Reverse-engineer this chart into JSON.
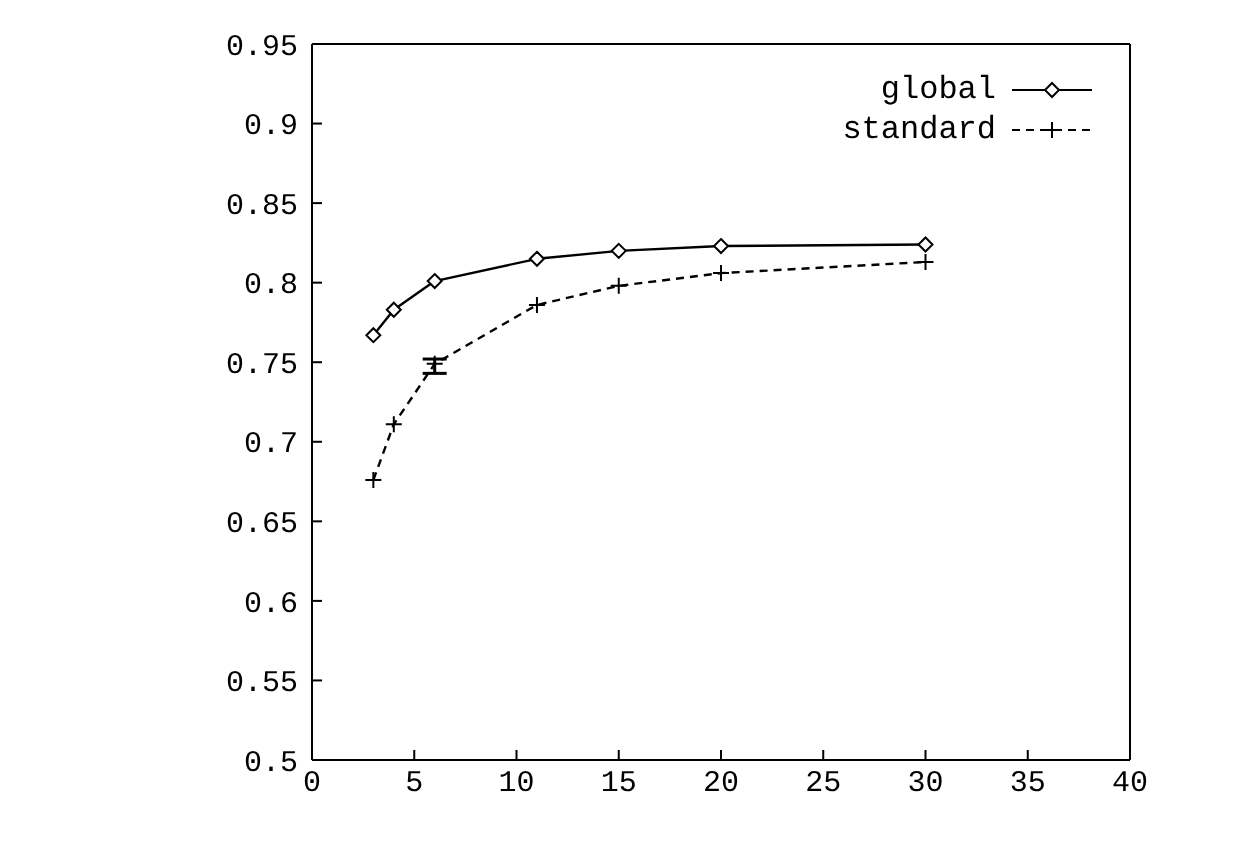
{
  "chart_data": {
    "type": "line",
    "x": [
      3,
      4,
      6,
      11,
      15,
      20,
      30
    ],
    "series": [
      {
        "name": "global",
        "color": "#000000",
        "marker": "diamond",
        "line_style": "solid",
        "values": [
          0.767,
          0.783,
          0.801,
          0.815,
          0.82,
          0.823,
          0.824
        ]
      },
      {
        "name": "standard",
        "color": "#000000",
        "marker": "cross",
        "line_style": "dashed",
        "values": [
          0.676,
          0.711,
          0.749,
          0.786,
          0.798,
          0.806,
          0.813
        ],
        "errors": [
          null,
          null,
          [
            0.743,
            0.752
          ],
          null,
          null,
          null,
          null
        ]
      }
    ],
    "xlim": [
      0,
      40
    ],
    "xticks": [
      0,
      5,
      10,
      15,
      20,
      25,
      30,
      35,
      40
    ],
    "ylim": [
      0.5,
      0.95
    ],
    "yticks": [
      0.5,
      0.55,
      0.6,
      0.65,
      0.7,
      0.75,
      0.8,
      0.85,
      0.9,
      0.95
    ],
    "grid": false,
    "legend": "top right"
  }
}
